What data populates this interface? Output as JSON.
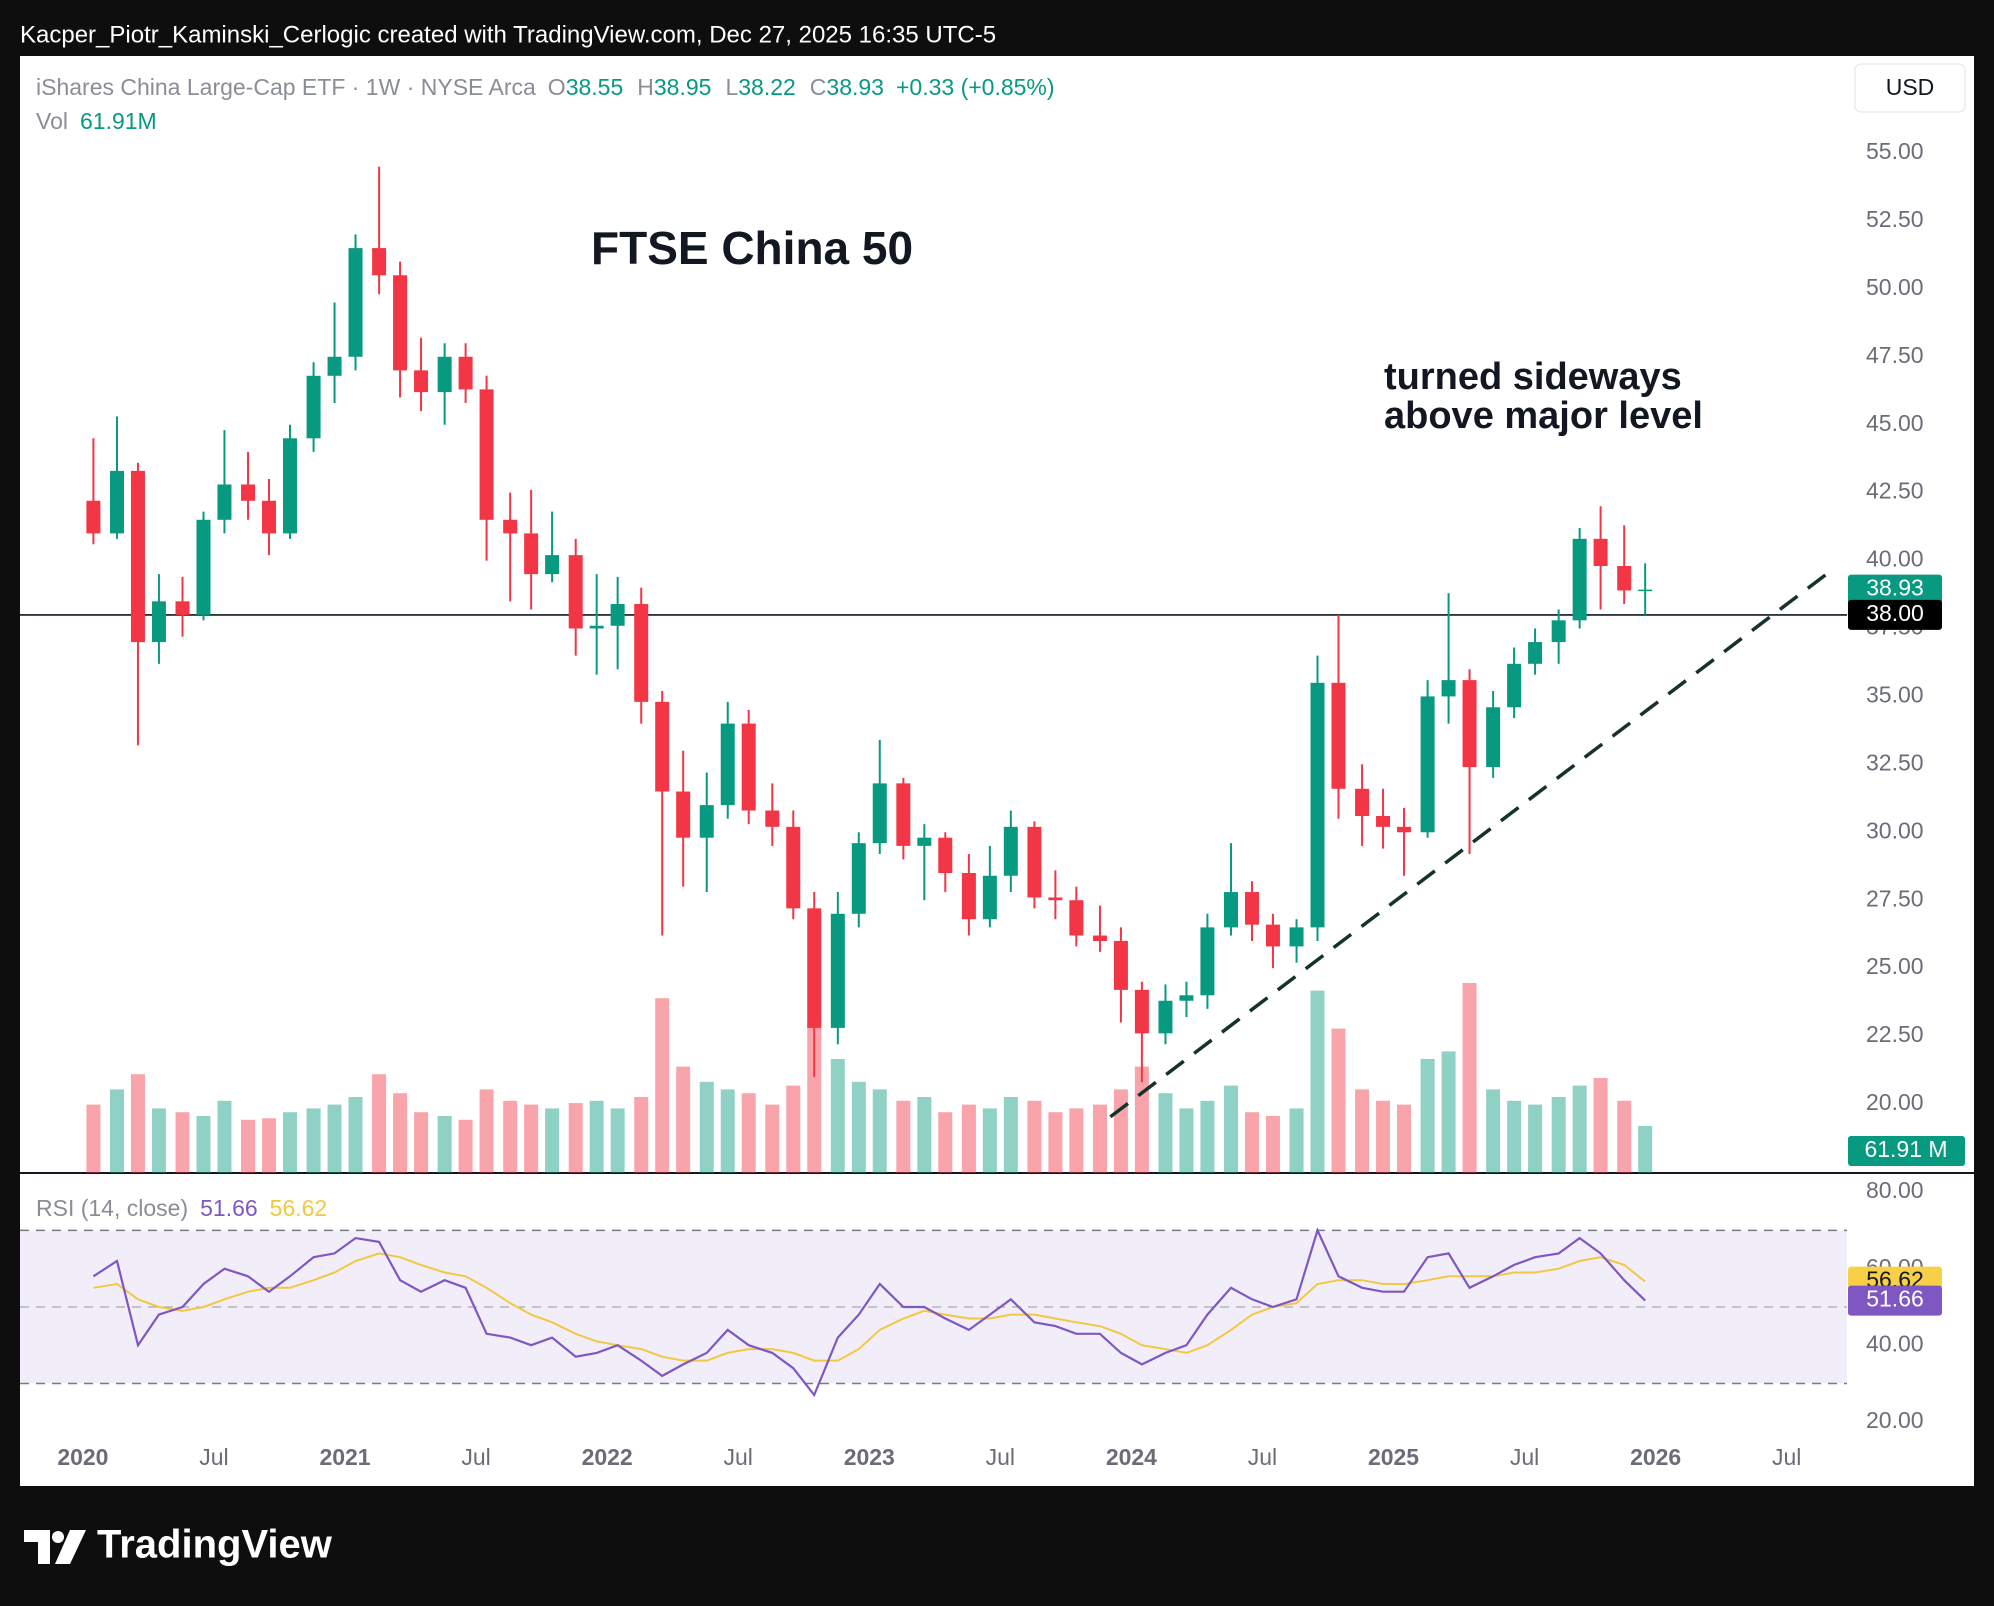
{
  "attribution": "Kacper_Piotr_Kaminski_Cerlogic created with TradingView.com, Dec 27, 2025 16:35 UTC-5",
  "footer": "TradingView",
  "chart_data": {
    "type": "candlestick",
    "title": "FTSE China 50",
    "annotation": [
      "turned sideways",
      "above major level"
    ],
    "currency": "USD",
    "header": {
      "symbol": "iShares China Large-Cap ETF · 1W · NYSE Arca",
      "fields": [
        {
          "key": "O",
          "value": 38.55
        },
        {
          "key": "H",
          "value": 38.95
        },
        {
          "key": "L",
          "value": 38.22
        },
        {
          "key": "C",
          "value": 38.93
        }
      ],
      "change": "+0.33 (+0.85%)",
      "volume_key": "Vol",
      "volume": "61.91M"
    },
    "up_color": "#089981",
    "down_color": "#f23645",
    "x": [
      2020.04,
      2020.13,
      2020.21,
      2020.29,
      2020.38,
      2020.46,
      2020.54,
      2020.63,
      2020.71,
      2020.79,
      2020.88,
      2020.96,
      2021.04,
      2021.13,
      2021.21,
      2021.29,
      2021.38,
      2021.46,
      2021.54,
      2021.63,
      2021.71,
      2021.79,
      2021.88,
      2021.96,
      2022.04,
      2022.13,
      2022.21,
      2022.29,
      2022.38,
      2022.46,
      2022.54,
      2022.63,
      2022.71,
      2022.79,
      2022.88,
      2022.96,
      2023.04,
      2023.13,
      2023.21,
      2023.29,
      2023.38,
      2023.46,
      2023.54,
      2023.63,
      2023.71,
      2023.79,
      2023.88,
      2023.96,
      2024.04,
      2024.13,
      2024.21,
      2024.29,
      2024.38,
      2024.46,
      2024.54,
      2024.63,
      2024.71,
      2024.79,
      2024.88,
      2024.96,
      2025.04,
      2025.13,
      2025.21,
      2025.29,
      2025.38,
      2025.46,
      2025.54,
      2025.63,
      2025.71,
      2025.79,
      2025.88,
      2025.96
    ],
    "open": [
      42.2,
      41.0,
      43.3,
      37.0,
      38.5,
      38.0,
      41.5,
      42.8,
      42.2,
      41.0,
      44.5,
      46.8,
      47.5,
      51.5,
      50.5,
      47.0,
      46.2,
      47.5,
      46.3,
      41.5,
      41.0,
      39.5,
      40.2,
      37.5,
      37.6,
      38.4,
      34.8,
      31.5,
      29.8,
      31.0,
      34.0,
      30.8,
      30.2,
      27.2,
      22.8,
      27.0,
      29.6,
      31.8,
      29.5,
      29.8,
      28.5,
      26.8,
      28.4,
      30.2,
      27.6,
      27.5,
      26.2,
      26.0,
      24.2,
      22.6,
      23.8,
      24.0,
      26.5,
      27.8,
      26.6,
      25.8,
      26.5,
      35.5,
      31.6,
      30.6,
      30.2,
      30.0,
      35.0,
      35.6,
      32.4,
      34.6,
      36.2,
      37.0,
      37.8,
      40.8,
      39.8,
      38.9
    ],
    "high": [
      44.5,
      45.3,
      43.6,
      39.5,
      39.4,
      41.8,
      44.8,
      44.0,
      43.0,
      45.0,
      47.3,
      49.5,
      52.0,
      54.5,
      51.0,
      48.2,
      48.0,
      48.0,
      46.8,
      42.5,
      42.6,
      41.8,
      40.8,
      39.5,
      39.4,
      39.0,
      35.2,
      33.0,
      32.2,
      34.8,
      34.5,
      31.8,
      30.8,
      27.8,
      27.8,
      30.0,
      33.4,
      32.0,
      30.3,
      30.0,
      29.2,
      29.5,
      30.8,
      30.4,
      28.6,
      28.0,
      27.3,
      26.5,
      24.5,
      24.4,
      24.5,
      27.0,
      29.6,
      28.2,
      27.0,
      26.8,
      36.5,
      38.0,
      32.5,
      31.6,
      30.9,
      35.6,
      38.8,
      36.0,
      35.2,
      36.8,
      37.5,
      38.2,
      41.2,
      42.0,
      41.3,
      39.9
    ],
    "low": [
      40.6,
      40.8,
      33.2,
      36.2,
      37.2,
      37.8,
      41.0,
      41.5,
      40.2,
      40.8,
      44.0,
      45.8,
      47.0,
      49.8,
      46.0,
      45.5,
      45.0,
      45.8,
      40.0,
      38.5,
      38.2,
      39.2,
      36.5,
      35.8,
      36.0,
      34.0,
      26.2,
      28.0,
      27.8,
      30.5,
      30.3,
      29.5,
      26.8,
      21.0,
      22.2,
      26.5,
      29.2,
      29.0,
      27.5,
      27.8,
      26.2,
      26.5,
      27.8,
      27.2,
      26.8,
      25.8,
      25.6,
      23.0,
      20.8,
      22.2,
      23.2,
      23.5,
      26.2,
      26.0,
      25.0,
      25.2,
      26.0,
      30.5,
      29.5,
      29.4,
      28.4,
      29.8,
      34.0,
      29.2,
      32.0,
      34.2,
      35.8,
      36.2,
      37.5,
      38.2,
      38.4,
      38.0
    ],
    "close": [
      41.0,
      43.3,
      37.0,
      38.5,
      38.0,
      41.5,
      42.8,
      42.2,
      41.0,
      44.5,
      46.8,
      47.5,
      51.5,
      50.5,
      47.0,
      46.2,
      47.5,
      46.3,
      41.5,
      41.0,
      39.5,
      40.2,
      37.5,
      37.6,
      38.4,
      34.8,
      31.5,
      29.8,
      31.0,
      34.0,
      30.8,
      30.2,
      27.2,
      22.8,
      27.0,
      29.6,
      31.8,
      29.5,
      29.8,
      28.5,
      26.8,
      28.4,
      30.2,
      27.6,
      27.5,
      26.2,
      26.0,
      24.2,
      22.6,
      23.8,
      24.0,
      26.5,
      27.8,
      26.6,
      25.8,
      26.5,
      35.5,
      31.6,
      30.6,
      30.2,
      30.0,
      35.0,
      35.6,
      32.4,
      34.6,
      36.2,
      37.0,
      37.8,
      40.8,
      39.8,
      38.9,
      38.93
    ],
    "xlim": [
      2019.76,
      2026.73
    ],
    "xticks": [
      2020,
      {
        "value": 2020.5,
        "label": "Jul"
      },
      2021,
      {
        "value": 2021.5,
        "label": "Jul"
      },
      2022,
      {
        "value": 2022.5,
        "label": "Jul"
      },
      2023,
      {
        "value": 2023.5,
        "label": "Jul"
      },
      2024,
      {
        "value": 2024.5,
        "label": "Jul"
      },
      2025,
      {
        "value": 2025.5,
        "label": "Jul"
      },
      2026,
      {
        "value": 2026.5,
        "label": "Jul"
      }
    ],
    "ylim": [
      17.46,
      58.57
    ],
    "yticks": [
      {
        "value": 20,
        "label": "20.00"
      },
      {
        "value": 22.5,
        "label": "22.50"
      },
      {
        "value": 25,
        "label": "25.00"
      },
      {
        "value": 27.5,
        "label": "27.50"
      },
      {
        "value": 30,
        "label": "30.00"
      },
      {
        "value": 32.5,
        "label": "32.50"
      },
      {
        "value": 35,
        "label": "35.00"
      },
      {
        "value": 37.5,
        "label": "37.50"
      },
      {
        "value": 40,
        "label": "40.00"
      },
      {
        "value": 42.5,
        "label": "42.50"
      },
      {
        "value": 45,
        "label": "45.00"
      },
      {
        "value": 47.5,
        "label": "47.50"
      },
      {
        "value": 50,
        "label": "50.00"
      },
      {
        "value": 52.5,
        "label": "52.50"
      },
      {
        "value": 55,
        "label": "55.00"
      }
    ],
    "grid": false,
    "level": {
      "value": 38,
      "label": "38.00"
    },
    "trendline": {
      "x": [
        2023.92,
        2026.66
      ],
      "y": [
        19.53,
        39.56
      ],
      "color": "#16332a"
    },
    "volume": {
      "values": [
        90,
        110,
        130,
        85,
        80,
        75,
        95,
        70,
        72,
        80,
        85,
        90,
        100,
        130,
        105,
        80,
        75,
        70,
        110,
        95,
        90,
        85,
        92,
        95,
        85,
        100,
        230,
        140,
        120,
        110,
        105,
        90,
        115,
        200,
        150,
        120,
        110,
        95,
        100,
        80,
        90,
        85,
        100,
        95,
        80,
        85,
        90,
        110,
        140,
        105,
        85,
        95,
        115,
        80,
        75,
        85,
        240,
        190,
        110,
        95,
        90,
        150,
        160,
        250,
        110,
        95,
        90,
        100,
        115,
        125,
        95,
        61.91
      ],
      "last_label": "61.91 M"
    },
    "rsi": {
      "title": "RSI (14, close)",
      "color": "#7e57c2",
      "values": [
        58,
        62,
        40,
        48,
        50,
        56,
        60,
        58,
        54,
        58,
        63,
        64,
        68,
        67,
        57,
        54,
        57,
        55,
        43,
        42,
        40,
        42,
        37,
        38,
        40,
        36,
        32,
        35,
        38,
        44,
        40,
        38,
        34,
        27,
        42,
        48,
        56,
        50,
        50,
        47,
        44,
        48,
        52,
        46,
        45,
        43,
        43,
        38,
        35,
        38,
        40,
        48,
        55,
        52,
        50,
        52,
        70,
        58,
        55,
        54,
        54,
        63,
        64,
        55,
        58,
        61,
        63,
        64,
        68,
        64,
        57,
        51.66
      ],
      "ma": {
        "color": "#f2c744",
        "values": [
          55,
          56,
          52,
          50,
          49,
          50,
          52,
          54,
          55,
          55,
          57,
          59,
          62,
          64,
          63,
          61,
          59,
          58,
          55,
          51,
          48,
          46,
          43,
          41,
          40,
          39,
          37,
          36,
          36,
          38,
          39,
          39,
          38,
          36,
          36,
          39,
          44,
          47,
          49,
          48,
          47,
          47,
          48,
          48,
          47,
          46,
          45,
          43,
          40,
          39,
          38,
          40,
          44,
          48,
          50,
          51,
          56,
          57,
          57,
          56,
          56,
          57,
          58,
          58,
          58,
          59,
          59,
          60,
          62,
          63,
          61,
          56.62
        ]
      },
      "ylim": [
        14.2,
        85
      ],
      "yticks": [
        {
          "value": 20,
          "label": "20.00"
        },
        {
          "value": 40,
          "label": "40.00"
        },
        {
          "value": 60,
          "label": "60.00"
        },
        {
          "value": 80,
          "label": "80.00"
        }
      ],
      "bands": [
        30,
        70
      ],
      "mid": 50
    }
  }
}
